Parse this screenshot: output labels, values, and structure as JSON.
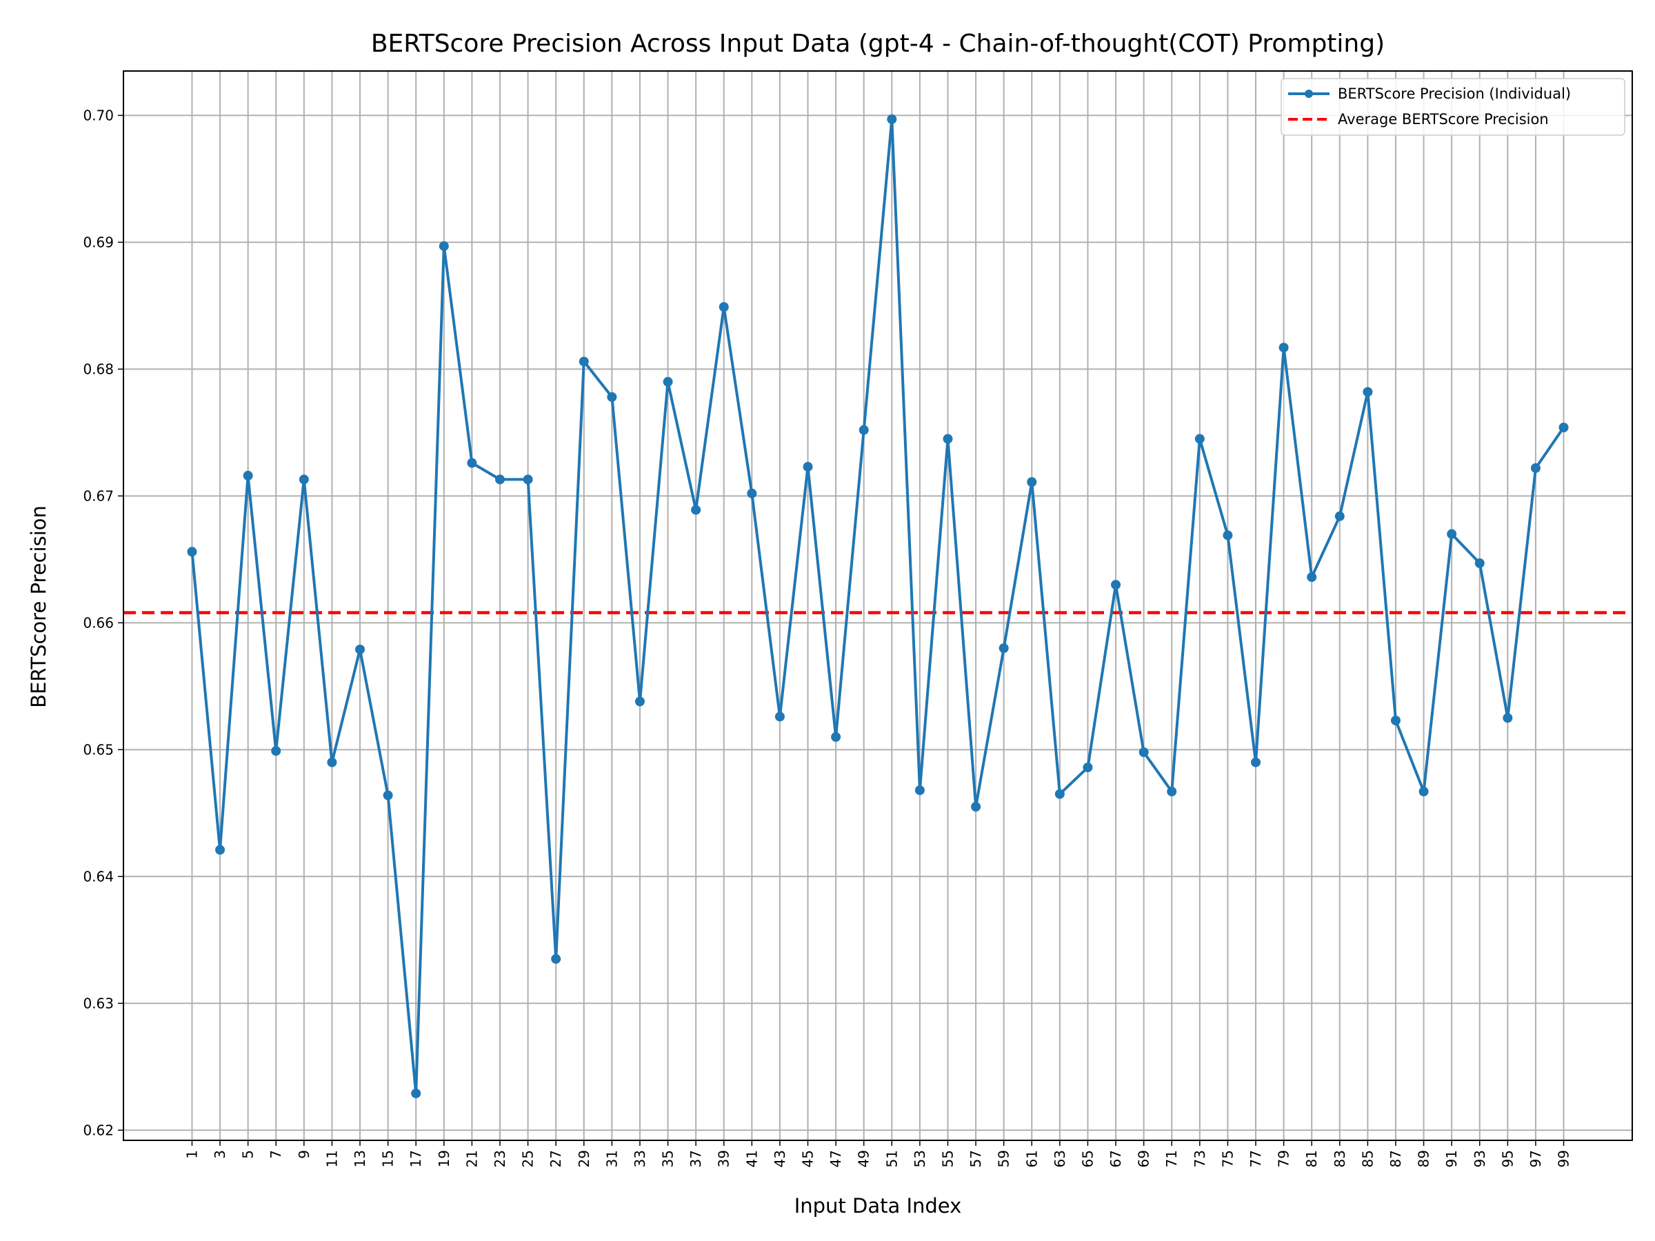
{
  "chart_data": {
    "type": "line",
    "title": "BERTScore Precision Across Input Data (gpt-4 - Chain-of-thought(COT) Prompting)",
    "xlabel": "Input Data Index",
    "ylabel": "BERTScore Precision",
    "x": [
      1,
      3,
      5,
      7,
      9,
      11,
      13,
      15,
      17,
      19,
      21,
      23,
      25,
      27,
      29,
      31,
      33,
      35,
      37,
      39,
      41,
      43,
      45,
      47,
      49,
      51,
      53,
      55,
      57,
      59,
      61,
      63,
      65,
      67,
      69,
      71,
      73,
      75,
      77,
      79,
      81,
      83,
      85,
      87,
      89,
      91,
      93,
      95,
      97,
      99
    ],
    "xticks": [
      "1",
      "3",
      "5",
      "7",
      "9",
      "11",
      "13",
      "15",
      "17",
      "19",
      "21",
      "23",
      "25",
      "27",
      "29",
      "31",
      "33",
      "35",
      "37",
      "39",
      "41",
      "43",
      "45",
      "47",
      "49",
      "51",
      "53",
      "55",
      "57",
      "59",
      "61",
      "63",
      "65",
      "67",
      "69",
      "71",
      "73",
      "75",
      "77",
      "79",
      "81",
      "83",
      "85",
      "87",
      "89",
      "91",
      "93",
      "95",
      "97",
      "99"
    ],
    "yticks": [
      "0.62",
      "0.63",
      "0.64",
      "0.65",
      "0.66",
      "0.67",
      "0.68",
      "0.69",
      "0.70"
    ],
    "ytick_values": [
      0.62,
      0.63,
      0.64,
      0.65,
      0.66,
      0.67,
      0.68,
      0.69,
      0.7
    ],
    "ylim": [
      0.6192,
      0.7035
    ],
    "xlim": [
      -3.9,
      103.9
    ],
    "grid": true,
    "legend_position": "top-right",
    "series": [
      {
        "name": "BERTScore Precision (Individual)",
        "color": "#1f77b4",
        "marker": "circle",
        "values": [
          0.6656,
          0.6421,
          0.6716,
          0.6499,
          0.6713,
          0.649,
          0.6579,
          0.6464,
          0.6229,
          0.6897,
          0.6726,
          0.6713,
          0.6713,
          0.6335,
          0.6806,
          0.6778,
          0.6538,
          0.679,
          0.6689,
          0.6849,
          0.6702,
          0.6526,
          0.6723,
          0.651,
          0.6752,
          0.6997,
          0.6468,
          0.6745,
          0.6455,
          0.658,
          0.6711,
          0.6465,
          0.6486,
          0.663,
          0.6498,
          0.6467,
          0.6745,
          0.6669,
          0.649,
          0.6817,
          0.6636,
          0.6684,
          0.6782,
          0.6523,
          0.6467,
          0.667,
          0.6647,
          0.6525,
          0.6722,
          0.6754
        ]
      }
    ],
    "average": {
      "name": "Average BERTScore Precision",
      "color": "#ff0000",
      "value": 0.6608
    }
  }
}
